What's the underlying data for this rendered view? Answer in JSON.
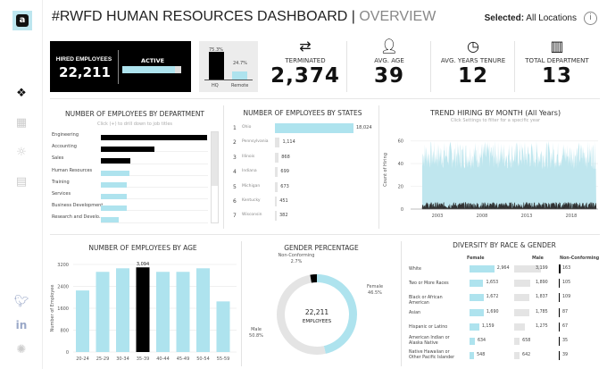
{
  "colors": {
    "accent": "#aee3ee",
    "highlight": "#000000",
    "neutral": "#e2e2e2"
  },
  "header": {
    "title": "#RWFD HUMAN RESOURCES DASHBOARD",
    "separator": "|",
    "subtitle": "OVERVIEW",
    "selected_label": "Selected:",
    "selected_value": "All Locations",
    "info_icon": "i"
  },
  "sidebar": {
    "logo_icon": "a",
    "items": [
      {
        "icon": "overview-icon"
      },
      {
        "icon": "table-icon"
      },
      {
        "icon": "settings-icon"
      },
      {
        "icon": "document-icon"
      }
    ],
    "social": [
      {
        "icon": "twitter-icon"
      },
      {
        "icon": "linkedin-icon"
      },
      {
        "icon": "tableau-icon"
      }
    ]
  },
  "kpis": {
    "hired": {
      "label": "HIRED EMPLOYEES",
      "value": "22,211",
      "active_label": "ACTIVE",
      "active_fraction": 0.9
    },
    "location": {
      "hq_pct": "75.3%",
      "remote_pct": "24.7%",
      "hq_label": "HQ",
      "remote_label": "Remote",
      "hq_value": 75.3,
      "remote_value": 24.7
    },
    "cards": [
      {
        "icon": "transfer-icon",
        "label": "TERMINATED",
        "value": "2,374"
      },
      {
        "icon": "person-icon",
        "label": "AVG. AGE",
        "value": "39"
      },
      {
        "icon": "clock-icon",
        "label": "AVG. YEARS TENURE",
        "value": "12"
      },
      {
        "icon": "building-icon",
        "label": "TOTAL DEPARTMENT",
        "value": "13"
      }
    ]
  },
  "chart_data": [
    {
      "type": "bar",
      "orientation": "horizontal",
      "title": "NUMBER OF EMPLOYEES BY DEPARTMENT",
      "subtitle": "Click (+) to drill down to job titles",
      "categories": [
        "Engineering",
        "Accounting",
        "Sales",
        "Human Resources",
        "Training",
        "Services",
        "Business Development",
        "Research and Develo.."
      ],
      "values": [
        6700,
        3350,
        1850,
        1800,
        1650,
        1650,
        1650,
        1100
      ],
      "highlighted": [
        true,
        true,
        true,
        false,
        false,
        false,
        false,
        false
      ]
    },
    {
      "type": "bar",
      "orientation": "horizontal",
      "title": "NUMBER OF EMPLOYEES BY STATES",
      "ranks": [
        "1",
        "2",
        "3",
        "4",
        "5",
        "6",
        "7"
      ],
      "categories": [
        "Ohio",
        "Pennsylvania",
        "Illinois",
        "Indiana",
        "Michigan",
        "Kentucky",
        "Wisconsin"
      ],
      "values": [
        18024,
        1114,
        868,
        699,
        673,
        451,
        382
      ],
      "labels": [
        "18,024",
        "1,114",
        "868",
        "699",
        "673",
        "451",
        "382"
      ]
    },
    {
      "type": "area",
      "title": "TREND HIRING BY MONTH (All Years)",
      "subtitle": "Click Settings to filter for a specific year",
      "ylabel": "Count of Hiring",
      "yticks": [
        "0",
        "20",
        "40",
        "60"
      ],
      "ylim": [
        0,
        70
      ],
      "xticks": [
        "2003",
        "2008",
        "2013",
        "2018"
      ],
      "xlim": [
        2000,
        2021
      ],
      "series": [
        {
          "typical_range": [
            35,
            60
          ],
          "start": 2001.3
        },
        {
          "typical_range": [
            0,
            6
          ],
          "start": 2001.3
        }
      ]
    },
    {
      "type": "bar",
      "title": "NUMBER OF EMPLOYEES BY AGE",
      "ylabel": "Number of Employee",
      "yticks": [
        "0",
        "800",
        "1600",
        "2400",
        "3200"
      ],
      "ylim": [
        0,
        3200
      ],
      "categories": [
        "20-24",
        "25-29",
        "30-34",
        "35-39",
        "40-44",
        "45-49",
        "50-54",
        "55-59"
      ],
      "values": [
        2250,
        2930,
        3060,
        3094,
        2930,
        2930,
        3060,
        1850
      ],
      "highlight_index": 3,
      "highlight_label": "3,094"
    },
    {
      "type": "pie",
      "title": "GENDER PERCENTAGE",
      "center_value": "22,211",
      "center_label": "EMPLOYEES",
      "slices": [
        {
          "name": "Female",
          "pct": "46.5%",
          "value": 46.5
        },
        {
          "name": "Male",
          "pct": "50.8%",
          "value": 50.8
        },
        {
          "name": "Non-Conforming",
          "pct": "2.7%",
          "value": 2.7
        }
      ]
    },
    {
      "type": "table",
      "title": "DIVERSITY BY RACE & GENDER",
      "columns": [
        "Female",
        "Male",
        "Non-Conforming"
      ],
      "rows": [
        {
          "race": "White",
          "female": 2964,
          "male": 3199,
          "nc": 163,
          "fl": "2,964",
          "ml": "3,199",
          "nl": "163"
        },
        {
          "race": "Two or More Races",
          "female": 1653,
          "male": 1890,
          "nc": 105,
          "fl": "1,653",
          "ml": "1,890",
          "nl": "105"
        },
        {
          "race": "Black or African American",
          "female": 1672,
          "male": 1837,
          "nc": 109,
          "fl": "1,672",
          "ml": "1,837",
          "nl": "109"
        },
        {
          "race": "Asian",
          "female": 1690,
          "male": 1785,
          "nc": 87,
          "fl": "1,690",
          "ml": "1,785",
          "nl": "87"
        },
        {
          "race": "Hispanic or Latino",
          "female": 1159,
          "male": 1275,
          "nc": 67,
          "fl": "1,159",
          "ml": "1,275",
          "nl": "67"
        },
        {
          "race": "American Indian or Alaska Native",
          "female": 634,
          "male": 658,
          "nc": 35,
          "fl": "634",
          "ml": "658",
          "nl": "35"
        },
        {
          "race": "Native Hawaiian or Other Pacific Islander",
          "female": 548,
          "male": 642,
          "nc": 39,
          "fl": "548",
          "ml": "642",
          "nl": "39"
        }
      ]
    }
  ]
}
